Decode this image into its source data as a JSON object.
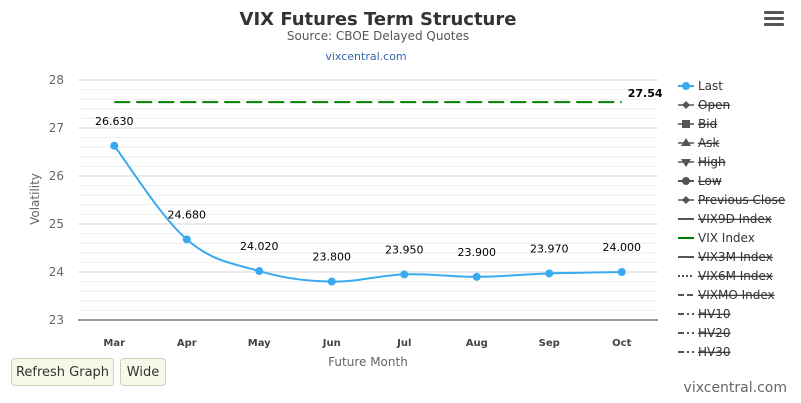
{
  "chart_data": {
    "type": "line",
    "title": "VIX Futures Term Structure",
    "subtitle": "Source: CBOE Delayed Quotes",
    "source_link": "vixcentral.com",
    "xlabel": "Future Month",
    "ylabel": "Volatility",
    "categories": [
      "Mar",
      "Apr",
      "May",
      "Jun",
      "Jul",
      "Aug",
      "Sep",
      "Oct"
    ],
    "ylim": [
      23,
      28
    ],
    "yticks": [
      "23",
      "24",
      "25",
      "26",
      "27",
      "28"
    ],
    "series": [
      {
        "name": "Last",
        "values": [
          26.63,
          24.68,
          24.02,
          23.8,
          23.95,
          23.9,
          23.97,
          24.0
        ],
        "labels": [
          "26.630",
          "24.680",
          "24.020",
          "23.800",
          "23.950",
          "23.900",
          "23.970",
          "24.000"
        ],
        "color": "#3aaaf0"
      },
      {
        "name": "VIX Index",
        "value": 27.54,
        "label": "27.54",
        "color": "#008000",
        "style": "dashed"
      }
    ],
    "legend": {
      "placement": "right",
      "items": [
        {
          "name": "Last",
          "symbol": "circle",
          "active": true
        },
        {
          "name": "Open",
          "symbol": "diamond",
          "active": false
        },
        {
          "name": "Bid",
          "symbol": "square",
          "active": false
        },
        {
          "name": "Ask",
          "symbol": "triangle",
          "active": false
        },
        {
          "name": "High",
          "symbol": "triangle-down",
          "active": false
        },
        {
          "name": "Low",
          "symbol": "circle",
          "active": false
        },
        {
          "name": "Previous Close",
          "symbol": "diamond",
          "active": false
        },
        {
          "name": "VIX9D Index",
          "symbol": "solid",
          "active": false
        },
        {
          "name": "VIX Index",
          "symbol": "solid-green",
          "active": true
        },
        {
          "name": "VIX3M Index",
          "symbol": "solid",
          "active": false
        },
        {
          "name": "VIX6M Index",
          "symbol": "dotted",
          "active": false
        },
        {
          "name": "VIXMO Index",
          "symbol": "dash",
          "active": false
        },
        {
          "name": "HV10",
          "symbol": "dashdot",
          "active": false
        },
        {
          "name": "HV20",
          "symbol": "dashdot",
          "active": false
        },
        {
          "name": "HV30",
          "symbol": "dashdot",
          "active": false
        }
      ]
    },
    "grid": true
  },
  "controls": {
    "refresh_label": "Refresh Graph",
    "wide_label": "Wide",
    "menu_icon": "hamburger-menu-icon"
  },
  "footer": {
    "credit": "vixcentral.com"
  }
}
